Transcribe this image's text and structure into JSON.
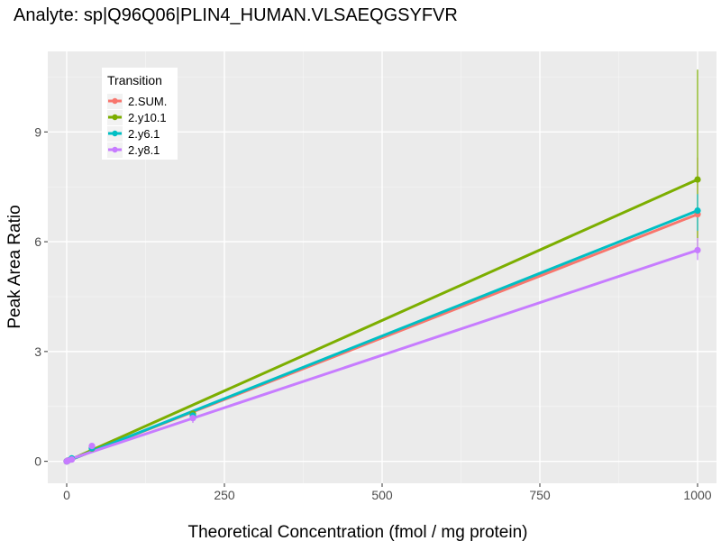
{
  "chart_data": {
    "type": "line",
    "title": "Analyte: sp|Q96Q06|PLIN4_HUMAN.VLSAEQGSYFVR",
    "xlabel": "Theoretical Concentration (fmol / mg protein)",
    "ylabel": "Peak Area Ratio",
    "xlim": [
      -30,
      1030
    ],
    "ylim": [
      -0.6,
      11.2
    ],
    "x_ticks": [
      0,
      250,
      500,
      750,
      1000
    ],
    "x_tick_labels": [
      "0",
      "250",
      "500",
      "750",
      "1000"
    ],
    "y_ticks": [
      0,
      3,
      6,
      9
    ],
    "y_tick_labels": [
      "0",
      "3",
      "6",
      "9"
    ],
    "grid": true,
    "legend": {
      "title": "Transition",
      "position": "top-left"
    },
    "series": [
      {
        "name": "2.SUM.",
        "color": "#F8766D",
        "fit": [
          [
            0,
            0.0
          ],
          [
            1000,
            6.75
          ]
        ],
        "points": [
          [
            0,
            0.0
          ],
          [
            1,
            0.01
          ],
          [
            2,
            0.02
          ],
          [
            8,
            0.06
          ],
          [
            40,
            0.38
          ],
          [
            200,
            1.28
          ],
          [
            1000,
            6.75
          ]
        ],
        "error_bars": [
          [
            1000,
            6.1,
            8.3
          ]
        ]
      },
      {
        "name": "2.y10.1",
        "color": "#7CAE00",
        "fit": [
          [
            0,
            0.0
          ],
          [
            1000,
            7.7
          ]
        ],
        "points": [
          [
            0,
            0.0
          ],
          [
            1,
            0.01
          ],
          [
            2,
            0.02
          ],
          [
            8,
            0.07
          ],
          [
            40,
            0.35
          ],
          [
            200,
            1.3
          ],
          [
            1000,
            7.7
          ]
        ],
        "error_bars": [
          [
            1000,
            5.8,
            10.7
          ]
        ]
      },
      {
        "name": "2.y6.1",
        "color": "#00BFC4",
        "fit": [
          [
            0,
            0.0
          ],
          [
            1000,
            6.85
          ]
        ],
        "points": [
          [
            0,
            0.0
          ],
          [
            1,
            0.01
          ],
          [
            2,
            0.02
          ],
          [
            8,
            0.08
          ],
          [
            40,
            0.36
          ],
          [
            200,
            1.25
          ],
          [
            1000,
            6.85
          ]
        ],
        "error_bars": [
          [
            1000,
            6.3,
            7.3
          ]
        ]
      },
      {
        "name": "2.y8.1",
        "color": "#C77CFF",
        "fit": [
          [
            0,
            0.03
          ],
          [
            1000,
            5.77
          ]
        ],
        "points": [
          [
            0,
            0.0
          ],
          [
            1,
            0.01
          ],
          [
            2,
            0.02
          ],
          [
            8,
            0.05
          ],
          [
            40,
            0.42
          ],
          [
            200,
            1.18
          ],
          [
            1000,
            5.77
          ]
        ],
        "error_bars": [
          [
            200,
            1.05,
            1.3
          ],
          [
            1000,
            5.5,
            6.1
          ]
        ]
      }
    ]
  }
}
